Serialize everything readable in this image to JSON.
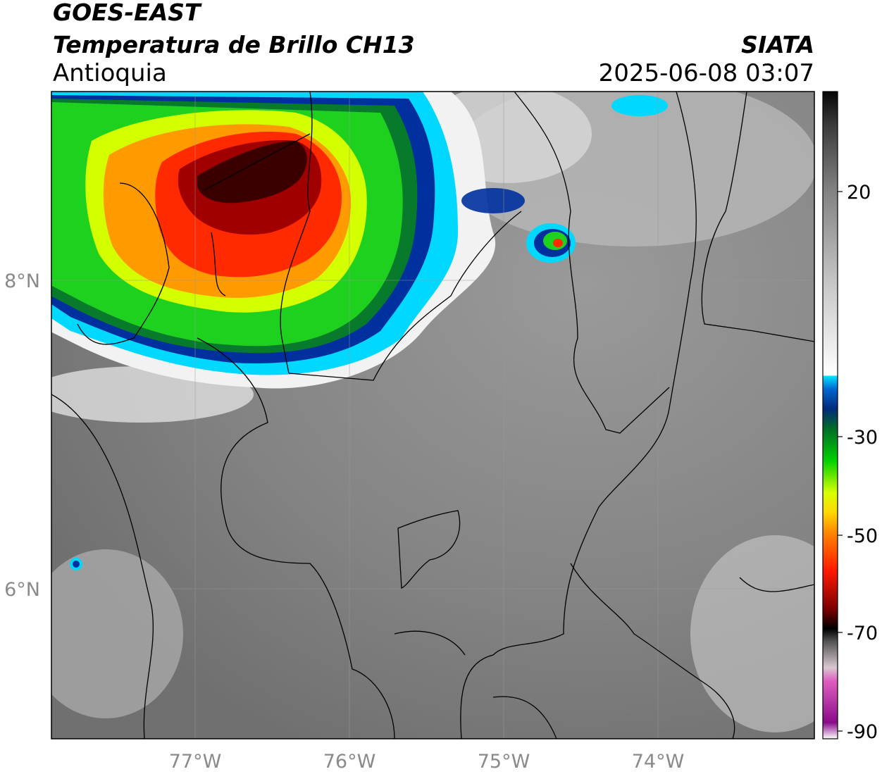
{
  "header": {
    "satellite": "GOES-EAST",
    "product": "Temperatura de Brillo CH13",
    "region": "Antioquia",
    "brand": "SIATA",
    "datetime": "2025-06-08 03:07"
  },
  "map": {
    "lon_ticks": [
      "77°W",
      "76°W",
      "75°W",
      "74°W"
    ],
    "lat_ticks": [
      "8°N",
      "6°N"
    ],
    "lon_values": [
      -77,
      -76,
      -75,
      -74
    ],
    "lat_values": [
      8,
      6
    ]
  },
  "colorbar": {
    "ticks": [
      "20",
      "-30",
      "-50",
      "-70",
      "-90"
    ],
    "tick_values": [
      20,
      -30,
      -50,
      -70,
      -90
    ],
    "range": [
      -90,
      38
    ]
  },
  "colors": {
    "cloud_cold": "#8b0000",
    "cloud_red": "#ff2a00",
    "cloud_orange": "#ff9a00",
    "cloud_yellow": "#ffea00",
    "cloud_green": "#1fd11f",
    "cloud_darkgreen": "#077a2b",
    "cloud_blue": "#00309e",
    "cloud_cyan": "#00d8ff",
    "land_gray": "#808080"
  }
}
